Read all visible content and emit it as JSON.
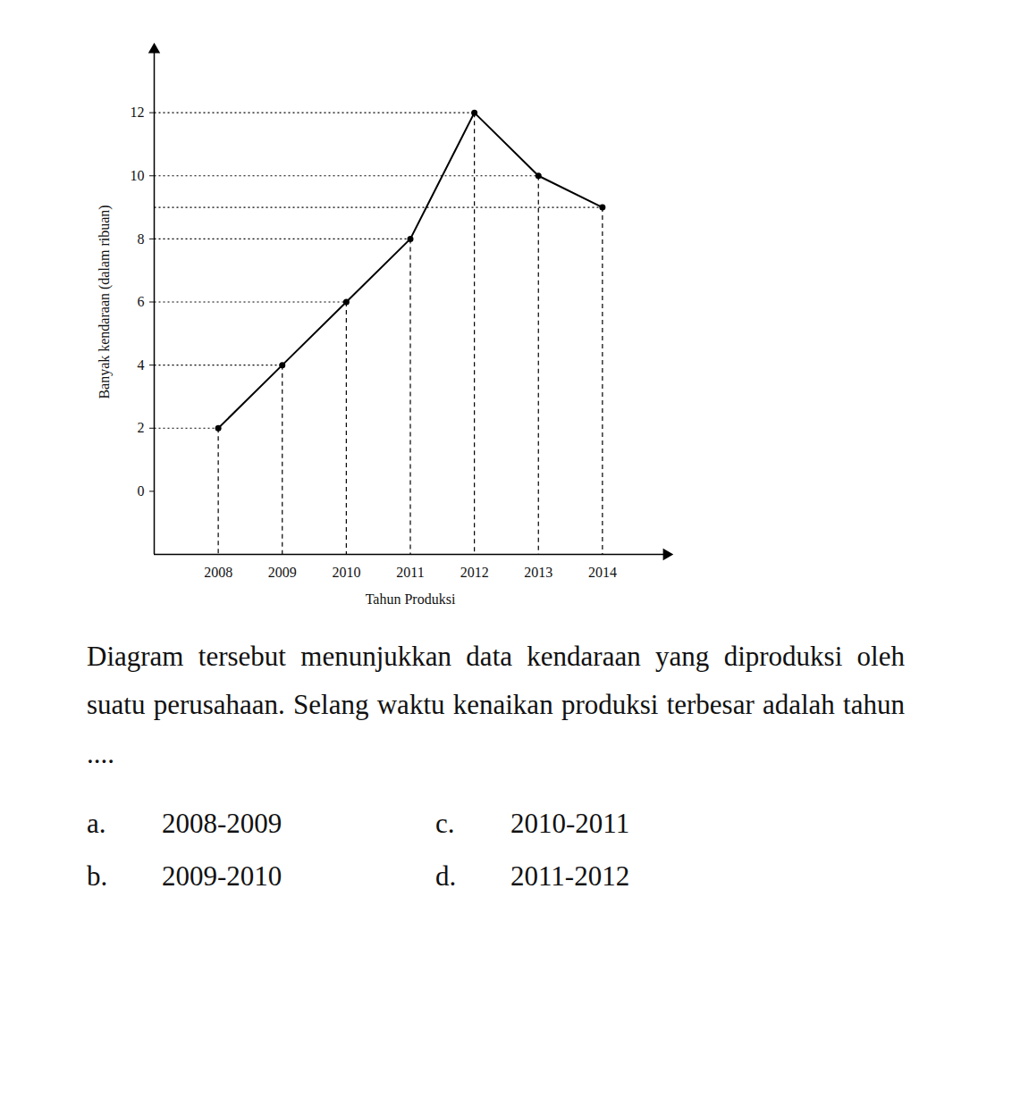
{
  "chart_data": {
    "type": "line",
    "categories": [
      "2008",
      "2009",
      "2010",
      "2011",
      "2012",
      "2013",
      "2014"
    ],
    "values": [
      2,
      4,
      6,
      8,
      12,
      10,
      9
    ],
    "color": "#000000",
    "marker": "circle",
    "ylim": [
      -2,
      14
    ],
    "yticks": [
      0,
      2,
      4,
      6,
      8,
      10,
      12
    ],
    "xlabel": "Tahun Produksi",
    "ylabel": "Banyak kendaraan (dalam ribuan)"
  },
  "question": "Diagram tersebut menunjukkan data kendaraan yang diproduksi oleh suatu perusahaan. Selang waktu kenaikan produksi terbesar adalah tahun ....",
  "options": [
    {
      "label": "a.",
      "text": "2008-2009"
    },
    {
      "label": "b.",
      "text": "2009-2010"
    },
    {
      "label": "c.",
      "text": "2010-2011"
    },
    {
      "label": "d.",
      "text": "2011-2012"
    }
  ]
}
